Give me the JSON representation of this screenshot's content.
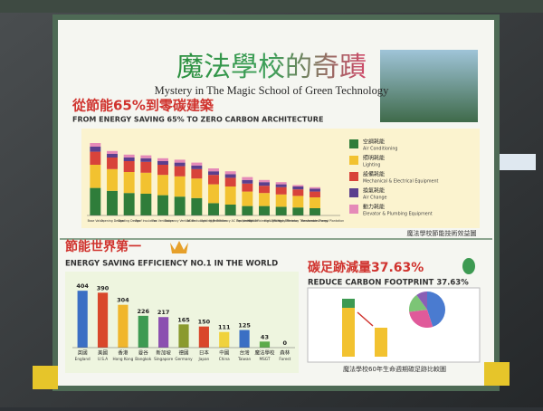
{
  "poster": {
    "title": "魔法學校的奇蹟",
    "subtitle": "Mystery in The Magic School of Green Technology",
    "section1_zh": "從節能65%到零碳建築",
    "section1_en": "FROM ENERGY SAVING 65% TO ZERO CARBON ARCHITECTURE",
    "section1_note": "魔法學校節能技術效益圖",
    "section2_zh": "節能世界第一",
    "section2_en": "ENERGY SAVING EFFICIENCY NO.1 IN THE WORLD",
    "section3_zh": "碳足跡減量37.63%",
    "section3_en": "REDUCE CARBON FOOTPRINT 37.63%",
    "section3_note": "魔法學校60年生命週期碳足跡比較圖"
  },
  "chart_data": [
    {
      "type": "stacked-bar",
      "categories": [
        "Base Value",
        "Opening Design",
        "Shading Design",
        "Roof Insulation",
        "Fan Ventilation",
        "Buoyancy Ventilation",
        "AC Reduction",
        "Lighting Reduction",
        "High Efficiency AC Equipment",
        "Fan Ventilation",
        "High Efficiency Lighting",
        "High Efficiency Elevator",
        "High Efficiency Transformers",
        "Renewable Energy",
        "Forest Plantation"
      ],
      "series": [
        {
          "name": "空調耗能",
          "name_en": "Air Conditioning",
          "color": "#2f7d3a",
          "values": [
            38,
            34,
            31,
            30,
            28,
            26,
            24,
            17,
            15,
            13,
            13,
            12,
            11,
            10,
            0
          ]
        },
        {
          "name": "照明耗能",
          "name_en": "Lighting",
          "color": "#f2c230",
          "values": [
            32,
            30,
            29,
            29,
            28,
            28,
            27,
            26,
            25,
            20,
            18,
            17,
            16,
            15,
            0
          ]
        },
        {
          "name": "設備耗能",
          "name_en": "Mechanical & Electrical Equipment",
          "color": "#d8433a",
          "values": [
            18,
            16,
            15,
            15,
            14,
            14,
            13,
            13,
            12,
            11,
            10,
            10,
            9,
            8,
            0
          ]
        },
        {
          "name": "換氣耗能",
          "name_en": "Air Change",
          "color": "#5b3f8e",
          "values": [
            7,
            5,
            5,
            5,
            5,
            5,
            5,
            5,
            5,
            5,
            5,
            4,
            4,
            4,
            0
          ]
        },
        {
          "name": "動力耗能",
          "name_en": "Elevator & Plumbing Equipment",
          "color": "#e58ab8",
          "values": [
            5,
            4,
            4,
            4,
            4,
            4,
            4,
            4,
            4,
            4,
            3,
            3,
            2,
            2,
            0
          ]
        }
      ],
      "ylim": [
        0,
        110
      ]
    },
    {
      "type": "bar",
      "categories": [
        "英國",
        "美國",
        "香港",
        "曼谷",
        "新加坡",
        "德國",
        "日本",
        "中國",
        "台灣",
        "魔法學校",
        "森林"
      ],
      "categories_en": [
        "England",
        "U.S.A",
        "Hong Kong",
        "Bangkok",
        "Singapore",
        "Germany",
        "Japan",
        "China",
        "Taiwan",
        "MSGT",
        "Forest"
      ],
      "values": [
        404,
        390,
        304,
        226,
        217,
        165,
        150,
        111,
        125,
        43,
        0
      ],
      "colors": [
        "#3b6fc4",
        "#d9472b",
        "#f0b62c",
        "#3d9a52",
        "#8b4fb0",
        "#8a9a2e",
        "#d9472b",
        "#f0d23c",
        "#3b6fc4",
        "#5cab4a",
        "#5cab4a"
      ],
      "ylim": [
        0,
        450
      ]
    },
    {
      "type": "pie",
      "values": [
        45,
        28,
        17,
        10
      ],
      "colors": [
        "#4a7bd0",
        "#e05a9a",
        "#7cc576",
        "#8a5fb5"
      ]
    }
  ]
}
